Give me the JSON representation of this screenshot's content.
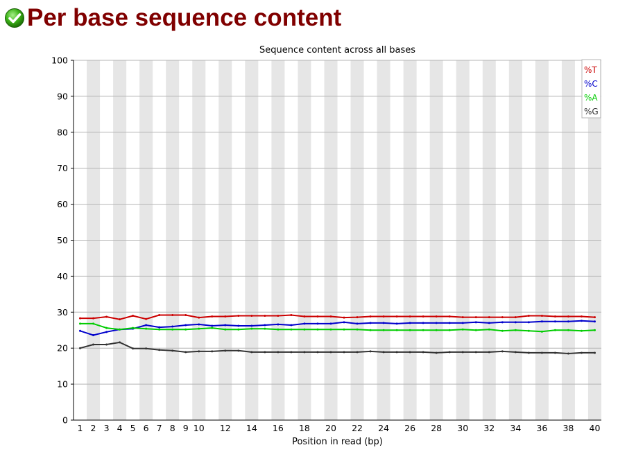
{
  "header": {
    "status": "pass",
    "status_icon": "check-circle-icon",
    "title": "Per base sequence content"
  },
  "chart_data": {
    "type": "line",
    "title": "Sequence content across all bases",
    "xlabel": "Position in read (bp)",
    "ylabel": "",
    "ylim": [
      0,
      100
    ],
    "yticks": [
      0,
      10,
      20,
      30,
      40,
      50,
      60,
      70,
      80,
      90,
      100
    ],
    "x": [
      1,
      2,
      3,
      4,
      5,
      6,
      7,
      8,
      9,
      10,
      11,
      12,
      13,
      14,
      15,
      16,
      17,
      18,
      19,
      20,
      21,
      22,
      23,
      24,
      25,
      26,
      27,
      28,
      29,
      30,
      31,
      32,
      33,
      34,
      35,
      36,
      37,
      38,
      39,
      40
    ],
    "xtick_labels": [
      "1",
      "2",
      "3",
      "4",
      "5",
      "6",
      "7",
      "8",
      "9",
      "10",
      "12",
      "14",
      "16",
      "18",
      "20",
      "22",
      "24",
      "26",
      "28",
      "30",
      "32",
      "34",
      "36",
      "38",
      "40"
    ],
    "xtick_positions": [
      1,
      2,
      3,
      4,
      5,
      6,
      7,
      8,
      9,
      10,
      12,
      14,
      16,
      18,
      20,
      22,
      24,
      26,
      28,
      30,
      32,
      34,
      36,
      38,
      40
    ],
    "grid": true,
    "legend_position": "top-right",
    "series": [
      {
        "name": "%T",
        "color": "#cc0000",
        "values": [
          28.3,
          28.3,
          28.7,
          28.0,
          29.0,
          28.1,
          29.2,
          29.2,
          29.2,
          28.5,
          28.8,
          28.8,
          29.0,
          29.0,
          29.0,
          29.0,
          29.2,
          28.8,
          28.8,
          28.8,
          28.5,
          28.6,
          28.8,
          28.8,
          28.8,
          28.8,
          28.8,
          28.8,
          28.8,
          28.6,
          28.6,
          28.6,
          28.6,
          28.6,
          29.0,
          29.0,
          28.8,
          28.8,
          28.8,
          28.6
        ]
      },
      {
        "name": "%C",
        "color": "#0000cc",
        "values": [
          24.8,
          23.6,
          24.5,
          25.2,
          25.4,
          26.4,
          25.8,
          26.0,
          26.4,
          26.6,
          26.2,
          26.4,
          26.2,
          26.2,
          26.4,
          26.6,
          26.4,
          26.8,
          26.8,
          26.8,
          27.2,
          26.8,
          27.0,
          27.0,
          26.8,
          27.0,
          27.0,
          27.0,
          27.0,
          27.0,
          27.2,
          27.0,
          27.2,
          27.2,
          27.2,
          27.4,
          27.4,
          27.4,
          27.6,
          27.4
        ]
      },
      {
        "name": "%A",
        "color": "#00cc00",
        "values": [
          26.8,
          26.8,
          25.6,
          25.2,
          25.6,
          25.4,
          25.2,
          25.2,
          25.2,
          25.4,
          25.6,
          25.2,
          25.2,
          25.4,
          25.4,
          25.2,
          25.2,
          25.2,
          25.2,
          25.2,
          25.2,
          25.2,
          25.0,
          25.0,
          25.0,
          25.0,
          25.0,
          25.0,
          25.0,
          25.2,
          25.0,
          25.2,
          24.8,
          25.0,
          24.8,
          24.6,
          25.0,
          25.0,
          24.8,
          25.0
        ]
      },
      {
        "name": "%G",
        "color": "#333333",
        "values": [
          20.0,
          21.0,
          21.0,
          21.6,
          19.9,
          19.9,
          19.5,
          19.3,
          18.9,
          19.1,
          19.1,
          19.3,
          19.3,
          18.9,
          18.9,
          18.9,
          18.9,
          18.9,
          18.9,
          18.9,
          18.9,
          18.9,
          19.1,
          18.9,
          18.9,
          18.9,
          18.9,
          18.7,
          18.9,
          18.9,
          18.9,
          18.9,
          19.1,
          18.9,
          18.7,
          18.7,
          18.7,
          18.5,
          18.7,
          18.7
        ]
      }
    ]
  }
}
